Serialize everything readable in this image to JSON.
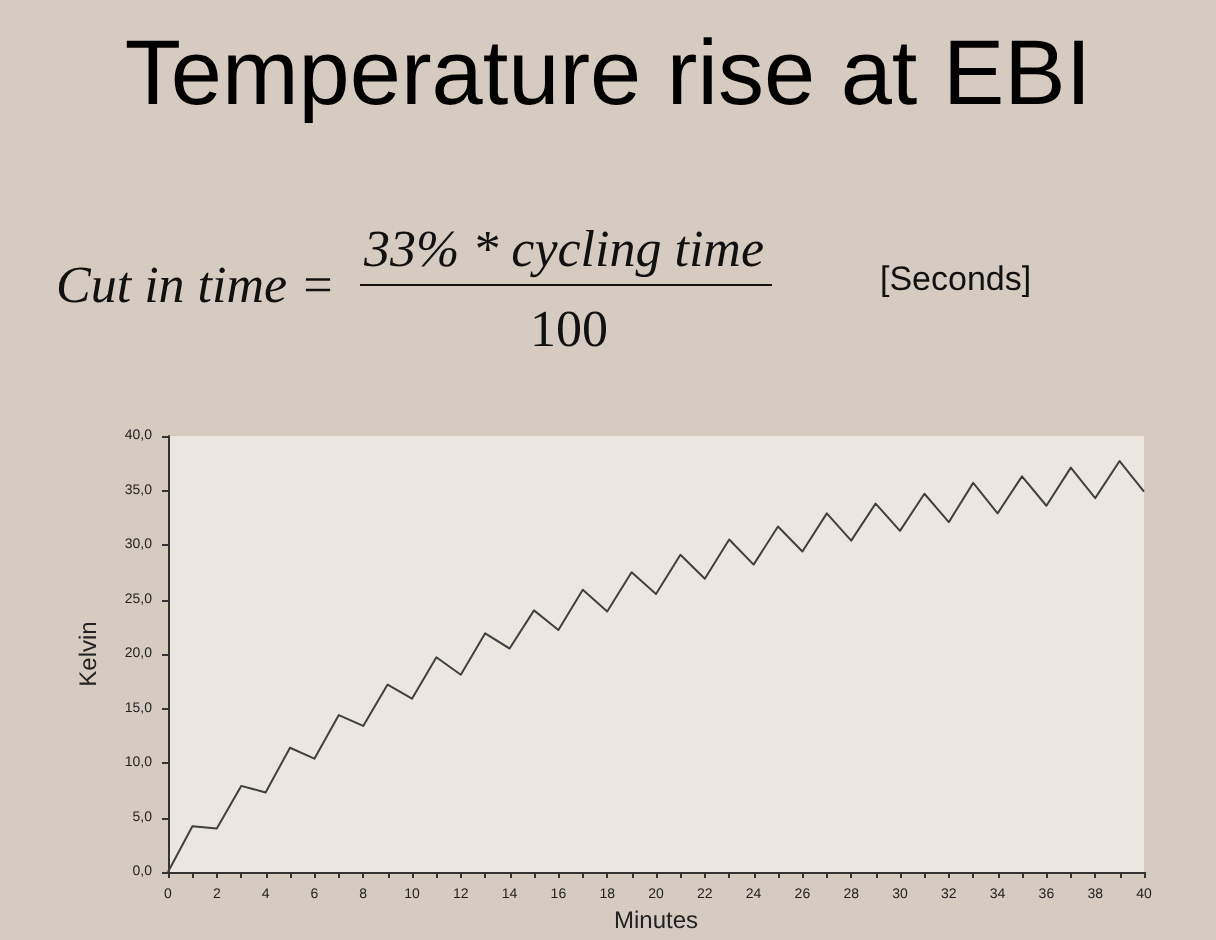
{
  "chart_data": {
    "type": "line",
    "title": "Temperature rise at EBI",
    "annotations": [
      "Cut in time =",
      "33% * cycling  time",
      "100",
      "[Seconds]"
    ],
    "xlabel": "Minutes",
    "ylabel": "Kelvin",
    "x": [
      0,
      1,
      2,
      3,
      4,
      5,
      6,
      7,
      8,
      9,
      10,
      11,
      12,
      13,
      14,
      15,
      16,
      17,
      18,
      19,
      20,
      21,
      22,
      23,
      24,
      25,
      26,
      27,
      28,
      29,
      30,
      31,
      32,
      33,
      34,
      35,
      36,
      37,
      38,
      39,
      40
    ],
    "series": [
      {
        "color": "#404040",
        "values": [
          0,
          4.2,
          4.0,
          7.9,
          7.3,
          11.4,
          10.4,
          14.4,
          13.4,
          17.2,
          15.9,
          19.7,
          18.1,
          21.9,
          20.5,
          24.0,
          22.2,
          25.9,
          23.9,
          27.5,
          25.5,
          29.1,
          26.9,
          30.5,
          28.2,
          31.7,
          29.4,
          32.9,
          30.4,
          33.8,
          31.3,
          34.7,
          32.1,
          35.7,
          32.9,
          36.3,
          33.6,
          37.1,
          34.3,
          37.7,
          34.9
        ]
      }
    ],
    "xlim": [
      0,
      40
    ],
    "xticks": [
      0,
      {
        "value": 1,
        "label": null
      },
      2,
      {
        "value": 3,
        "label": null
      },
      4,
      {
        "value": 5,
        "label": null
      },
      6,
      {
        "value": 7,
        "label": null
      },
      8,
      {
        "value": 9,
        "label": null
      },
      10,
      {
        "value": 11,
        "label": null
      },
      12,
      {
        "value": 13,
        "label": null
      },
      14,
      {
        "value": 15,
        "label": null
      },
      16,
      {
        "value": 17,
        "label": null
      },
      18,
      {
        "value": 19,
        "label": null
      },
      20,
      {
        "value": 21,
        "label": null
      },
      22,
      {
        "value": 23,
        "label": null
      },
      24,
      {
        "value": 25,
        "label": null
      },
      26,
      {
        "value": 27,
        "label": null
      },
      28,
      {
        "value": 29,
        "label": null
      },
      30,
      {
        "value": 31,
        "label": null
      },
      32,
      {
        "value": 33,
        "label": null
      },
      34,
      {
        "value": 35,
        "label": null
      },
      36,
      {
        "value": 37,
        "label": null
      },
      38,
      {
        "value": 39,
        "label": null
      },
      40
    ],
    "ylim": [
      0,
      40
    ],
    "yticks": [
      {
        "value": 0,
        "label": "0,0"
      },
      {
        "value": 5,
        "label": "5,0"
      },
      {
        "value": 10,
        "label": "10,0"
      },
      {
        "value": 15,
        "label": "15,0"
      },
      {
        "value": 20,
        "label": "20,0"
      },
      {
        "value": 25,
        "label": "25,0"
      },
      {
        "value": 30,
        "label": "30,0"
      },
      {
        "value": 35,
        "label": "35,0"
      },
      {
        "value": 40,
        "label": "40,0"
      }
    ],
    "grid": false,
    "marker": "none",
    "line_style": "solid"
  }
}
